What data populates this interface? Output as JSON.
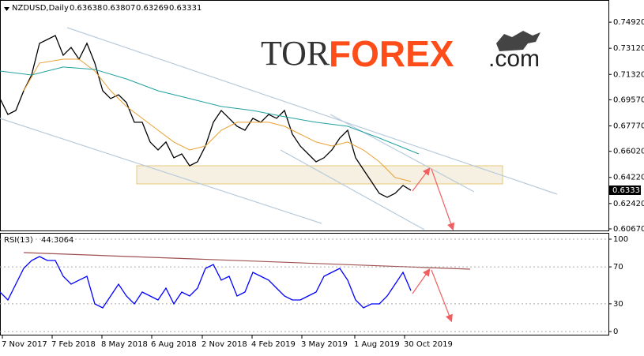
{
  "chart_data": [
    {
      "type": "line",
      "title": "NZDUSD,Daily",
      "ohlc_labels": [
        "0.63638",
        "0.63807",
        "0.63269",
        "0.63331"
      ],
      "logo": [
        "TOR",
        "FOREX",
        ".com"
      ],
      "xlim": [
        0,
        770
      ],
      "ylim": [
        0.6056,
        0.7634
      ],
      "yticks": [
        {
          "value": 0.7492,
          "label": "0.74920"
        },
        {
          "value": 0.7312,
          "label": "0.73120"
        },
        {
          "value": 0.7132,
          "label": "0.71320"
        },
        {
          "value": 0.6957,
          "label": "0.69570"
        },
        {
          "value": 0.6777,
          "label": "0.67770"
        },
        {
          "value": 0.6602,
          "label": "0.66020"
        },
        {
          "value": 0.6422,
          "label": "0.64220"
        },
        {
          "value": 0.6242,
          "label": "0.62420"
        },
        {
          "value": 0.6067,
          "label": "0.60670"
        }
      ],
      "grid": false,
      "series": [
        {
          "color": "#000000",
          "x": [
            0,
            10,
            20,
            30,
            40,
            50,
            60,
            70,
            80,
            90,
            100,
            110,
            120,
            130,
            140,
            150,
            160,
            170,
            180,
            190,
            200,
            210,
            220,
            230,
            240,
            250,
            260,
            270,
            280,
            290,
            300,
            310,
            320,
            330,
            340,
            350,
            360,
            370,
            380,
            390,
            400,
            410,
            420,
            430,
            440,
            450,
            460,
            470,
            480,
            490,
            500,
            510,
            520
          ],
          "values": [
            0.6965,
            0.6856,
            0.6883,
            0.7019,
            0.7128,
            0.7346,
            0.7373,
            0.74,
            0.7264,
            0.7318,
            0.7237,
            0.7346,
            0.721,
            0.7019,
            0.6965,
            0.6992,
            0.6938,
            0.6802,
            0.6802,
            0.6666,
            0.6611,
            0.6666,
            0.6557,
            0.6584,
            0.6502,
            0.653,
            0.6638,
            0.6802,
            0.6883,
            0.6829,
            0.6774,
            0.6747,
            0.6829,
            0.6802,
            0.6856,
            0.6829,
            0.6883,
            0.672,
            0.6638,
            0.6584,
            0.653,
            0.6557,
            0.6611,
            0.6693,
            0.6747,
            0.6557,
            0.6475,
            0.6394,
            0.6312,
            0.6285,
            0.6312,
            0.6366,
            0.6333
          ]
        },
        {
          "color": "#e8a030",
          "x": [
            30,
            50,
            80,
            100,
            120,
            140,
            160,
            180,
            200,
            220,
            240,
            260,
            280,
            300,
            320,
            340,
            360,
            380,
            400,
            420,
            440,
            460,
            480,
            500,
            520
          ],
          "values": [
            0.7019,
            0.721,
            0.7237,
            0.7237,
            0.7155,
            0.7019,
            0.6911,
            0.6829,
            0.6747,
            0.6666,
            0.6611,
            0.6638,
            0.6747,
            0.6802,
            0.6802,
            0.6802,
            0.6774,
            0.672,
            0.6666,
            0.6638,
            0.6666,
            0.6611,
            0.653,
            0.6421,
            0.6394
          ]
        },
        {
          "color": "#20a0a0",
          "x": [
            0,
            40,
            80,
            120,
            160,
            200,
            240,
            280,
            320,
            360,
            400,
            440,
            480,
            530
          ],
          "values": [
            0.7155,
            0.7128,
            0.7183,
            0.7166,
            0.7101,
            0.7019,
            0.6965,
            0.6911,
            0.6883,
            0.684,
            0.6802,
            0.6774,
            0.6693,
            0.6584
          ]
        }
      ]
    },
    {
      "type": "line",
      "title": "RSI(13)",
      "value_label": "44.3064",
      "xlim": [
        0,
        770
      ],
      "ylim": [
        0,
        100
      ],
      "yticks": [
        0,
        30,
        70,
        100
      ],
      "grid": true,
      "xticks": [
        {
          "value": 3,
          "label": "7 Nov 2017"
        },
        {
          "value": 66,
          "label": "7 Feb 2018"
        },
        {
          "value": 129,
          "label": "8 May 2018"
        },
        {
          "value": 192,
          "label": "6 Aug 2018"
        },
        {
          "value": 256,
          "label": "2 Nov 2018"
        },
        {
          "value": 319,
          "label": "4 Feb 2019"
        },
        {
          "value": 382,
          "label": "3 May 2019"
        },
        {
          "value": 449,
          "label": "1 Aug 2019"
        },
        {
          "value": 512,
          "label": "30 Oct 2019"
        }
      ],
      "series": [
        {
          "color": "#0000ff",
          "x": [
            0,
            10,
            20,
            30,
            40,
            50,
            60,
            70,
            80,
            90,
            100,
            110,
            120,
            130,
            140,
            150,
            160,
            170,
            180,
            190,
            200,
            210,
            220,
            230,
            240,
            250,
            260,
            270,
            280,
            290,
            300,
            310,
            320,
            330,
            340,
            350,
            360,
            370,
            380,
            390,
            400,
            410,
            420,
            430,
            440,
            450,
            460,
            470,
            480,
            490,
            500,
            510,
            520
          ],
          "values": [
            42.7,
            34.2,
            51.3,
            68.4,
            76.9,
            81.2,
            76.9,
            76.9,
            59.8,
            51.3,
            55.6,
            59.8,
            29.9,
            25.6,
            38.5,
            51.3,
            38.5,
            29.9,
            42.7,
            38.5,
            34.2,
            47,
            29.9,
            42.7,
            38.5,
            47,
            68.4,
            72.6,
            55.6,
            59.8,
            38.5,
            42.7,
            64.1,
            59.8,
            55.6,
            47,
            38.5,
            34.2,
            34.2,
            38.5,
            42.7,
            59.8,
            64.1,
            68.4,
            55.6,
            34.2,
            25.6,
            29.9,
            29.9,
            38.5,
            51.3,
            64.1,
            44.3
          ]
        }
      ]
    }
  ]
}
